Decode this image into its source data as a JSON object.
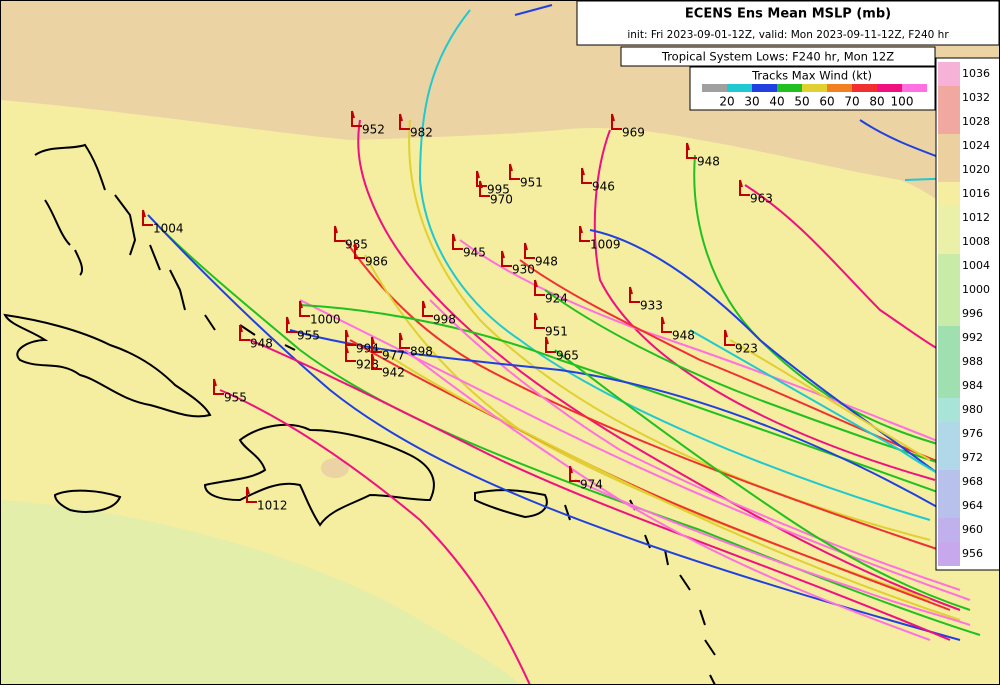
{
  "header": {
    "title": "ECENS Ens Mean MSLP (mb)",
    "subtitle": "init: Fri 2023-09-01-12Z, valid: Mon 2023-09-11-12Z, F240 hr"
  },
  "legend": {
    "system": "Tropical System Lows: F240 hr, Mon 12Z",
    "title": "Tracks Max Wind (kt)",
    "labels": [
      20,
      30,
      40,
      50,
      60,
      70,
      80,
      100
    ],
    "colors": [
      "#a0a0a0",
      "#20c8d0",
      "#2040e0",
      "#20c020",
      "#e0d030",
      "#f08020",
      "#f03030",
      "#f01080",
      "#ff70e0"
    ]
  },
  "colorbar": {
    "labels": [
      1036,
      1032,
      1028,
      1024,
      1020,
      1016,
      1012,
      1008,
      1004,
      1000,
      996,
      992,
      988,
      984,
      980,
      976,
      972,
      968,
      964,
      960,
      956
    ],
    "colors": [
      "#f7b2d8",
      "#f0a8a0",
      "#f0a8a0",
      "#ecd0a0",
      "#ecd0a0",
      "#f5eda0",
      "#eaf0a8",
      "#eaf0a8",
      "#c8eca8",
      "#c8eca8",
      "#c8eca8",
      "#a0e0b0",
      "#a0e0b0",
      "#a0e0b0",
      "#a8e4d8",
      "#b0d8e8",
      "#b0d8e8",
      "#b8c0ec",
      "#b8c0ec",
      "#c0b0ec",
      "#c8a8ec"
    ]
  },
  "lows": [
    "952",
    "982",
    "969",
    "948",
    "946",
    "995",
    "951",
    "970",
    "963",
    "1004",
    "985",
    "986",
    "1009",
    "945",
    "948",
    "930",
    "924",
    "933",
    "1000",
    "998",
    "955",
    "951",
    "948",
    "923",
    "948",
    "994",
    "977",
    "898",
    "965",
    "928",
    "942",
    "955",
    "974",
    "1012"
  ]
}
